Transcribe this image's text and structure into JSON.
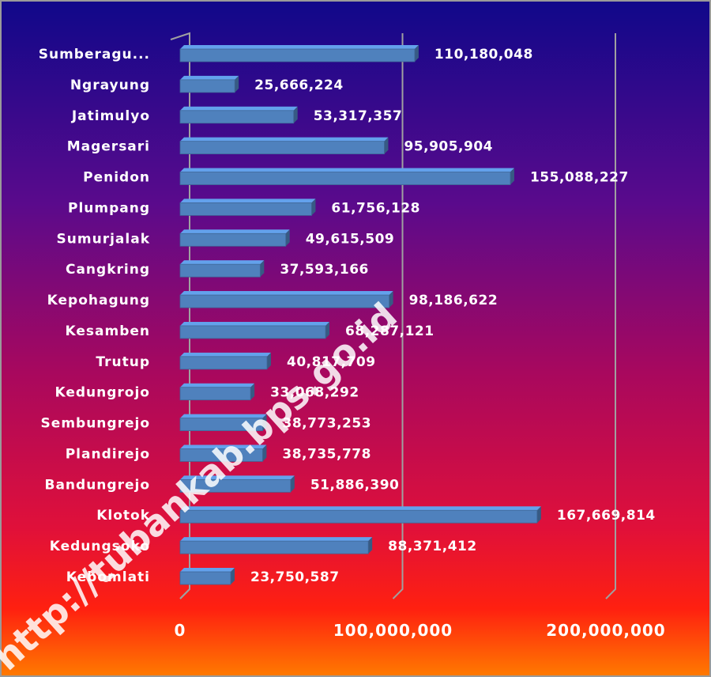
{
  "chart_data": {
    "type": "bar",
    "orientation": "horizontal",
    "categories": [
      "Sumberagu...",
      "Ngrayung",
      "Jatimulyo",
      "Magersari",
      "Penidon",
      "Plumpang",
      "Sumurjalak",
      "Cangkring",
      "Kepohagung",
      "Kesamben",
      "Trutup",
      "Kedungrojo",
      "Sembungrejo",
      "Plandirejo",
      "Bandungrejo",
      "Klotok",
      "Kedungsoko",
      "Kebomlati"
    ],
    "values": [
      110180048,
      25666224,
      53317357,
      95905904,
      155088227,
      61756128,
      49615509,
      37593166,
      98186622,
      68287121,
      40817709,
      33068292,
      38773253,
      38735778,
      51886390,
      167669814,
      88371412,
      23750587
    ],
    "value_labels": [
      "110,180,048",
      "25,666,224",
      "53,317,357",
      "95,905,904",
      "155,088,227",
      "61,756,128",
      "49,615,509",
      "37,593,166",
      "98,186,622",
      "68,287,121",
      "40,817,709",
      "33,068,292",
      "38,773,253",
      "38,735,778",
      "51,886,390",
      "167,669,814",
      "88,371,412",
      "23,750,587"
    ],
    "color": "#4f81bd",
    "xlim": [
      0,
      200000000
    ],
    "xticks": [
      0,
      {
        "value": 100000000,
        "label": "100,000,000"
      },
      {
        "value": 200000000,
        "label": "200,000,000"
      }
    ],
    "grid": true,
    "watermark": "http://tubankab.bps.go.id"
  }
}
